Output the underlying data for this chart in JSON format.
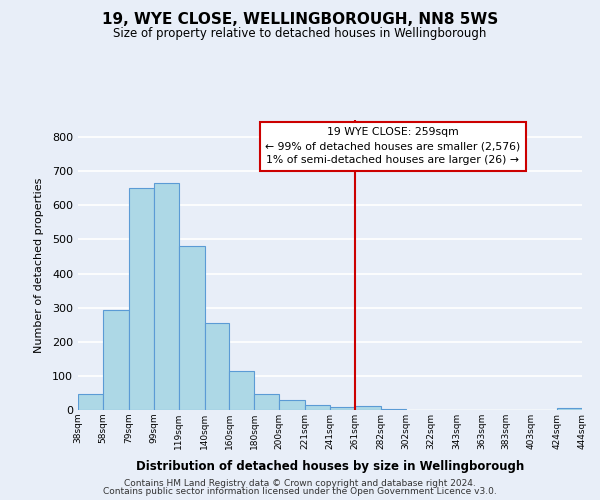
{
  "title": "19, WYE CLOSE, WELLINGBOROUGH, NN8 5WS",
  "subtitle": "Size of property relative to detached houses in Wellingborough",
  "xlabel": "Distribution of detached houses by size in Wellingborough",
  "ylabel": "Number of detached properties",
  "bar_edges": [
    38,
    58,
    79,
    99,
    119,
    140,
    160,
    180,
    200,
    221,
    241,
    261,
    282,
    302,
    322,
    343,
    363,
    383,
    403,
    424,
    444
  ],
  "bar_heights": [
    47,
    293,
    651,
    664,
    480,
    254,
    113,
    48,
    29,
    16,
    8,
    11,
    2,
    1,
    1,
    0,
    1,
    0,
    0,
    5
  ],
  "tick_labels": [
    "38sqm",
    "58sqm",
    "79sqm",
    "99sqm",
    "119sqm",
    "140sqm",
    "160sqm",
    "180sqm",
    "200sqm",
    "221sqm",
    "241sqm",
    "261sqm",
    "282sqm",
    "302sqm",
    "322sqm",
    "343sqm",
    "363sqm",
    "383sqm",
    "403sqm",
    "424sqm",
    "444sqm"
  ],
  "bar_color": "#add8e6",
  "bar_edge_color": "#5b9bd5",
  "vline_x": 261,
  "vline_color": "#cc0000",
  "annotation_title": "19 WYE CLOSE: 259sqm",
  "annotation_line1": "← 99% of detached houses are smaller (2,576)",
  "annotation_line2": "1% of semi-detached houses are larger (26) →",
  "annotation_box_color": "#ffffff",
  "annotation_box_edge": "#cc0000",
  "ylim": [
    0,
    850
  ],
  "yticks": [
    0,
    100,
    200,
    300,
    400,
    500,
    600,
    700,
    800
  ],
  "background_color": "#e8eef8",
  "grid_color": "#ffffff",
  "footer1": "Contains HM Land Registry data © Crown copyright and database right 2024.",
  "footer2": "Contains public sector information licensed under the Open Government Licence v3.0."
}
